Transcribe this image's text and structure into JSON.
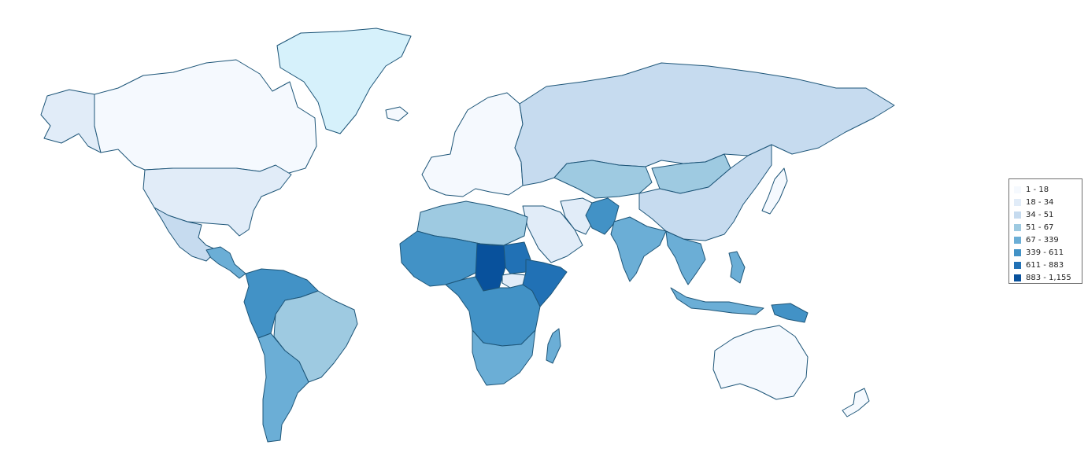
{
  "legend": {
    "bins": [
      {
        "label": "1 - 18",
        "color": "#f5f9fe"
      },
      {
        "label": "18 - 34",
        "color": "#e1ecf8"
      },
      {
        "label": "34 - 51",
        "color": "#c6dbef"
      },
      {
        "label": "51 - 67",
        "color": "#9ecae1"
      },
      {
        "label": "67 - 339",
        "color": "#6baed6"
      },
      {
        "label": "339 - 611",
        "color": "#4292c6"
      },
      {
        "label": "611 - 883",
        "color": "#2171b5"
      },
      {
        "label": "883 - 1,155",
        "color": "#08519c"
      }
    ]
  },
  "regions": [
    {
      "name": "alaska",
      "color": "#e1ecf8"
    },
    {
      "name": "canada",
      "color": "#f5f9fe"
    },
    {
      "name": "greenland",
      "color": "#d6f1fb"
    },
    {
      "name": "usa",
      "color": "#e1ecf8"
    },
    {
      "name": "mexico",
      "color": "#c6dbef"
    },
    {
      "name": "central-america",
      "color": "#6baed6"
    },
    {
      "name": "northern-south-america",
      "color": "#4292c6"
    },
    {
      "name": "brazil",
      "color": "#9ecae1"
    },
    {
      "name": "southern-south-america",
      "color": "#6baed6"
    },
    {
      "name": "iceland",
      "color": "#f5f9fe"
    },
    {
      "name": "europe",
      "color": "#f5f9fe"
    },
    {
      "name": "russia",
      "color": "#c6dbef"
    },
    {
      "name": "kazakhstan",
      "color": "#9ecae1"
    },
    {
      "name": "mongolia",
      "color": "#9ecae1"
    },
    {
      "name": "china",
      "color": "#c6dbef"
    },
    {
      "name": "japan",
      "color": "#f5f9fe"
    },
    {
      "name": "middle-east",
      "color": "#e1ecf8"
    },
    {
      "name": "iran",
      "color": "#e1ecf8"
    },
    {
      "name": "afghanistan-pakistan",
      "color": "#4292c6"
    },
    {
      "name": "india",
      "color": "#6baed6"
    },
    {
      "name": "southeast-asia",
      "color": "#6baed6"
    },
    {
      "name": "philippines",
      "color": "#6baed6"
    },
    {
      "name": "indonesia",
      "color": "#6baed6"
    },
    {
      "name": "papua-new-guinea",
      "color": "#4292c6"
    },
    {
      "name": "australia",
      "color": "#f5f9fe"
    },
    {
      "name": "new-zealand",
      "color": "#f5f9fe"
    },
    {
      "name": "north-africa",
      "color": "#9ecae1"
    },
    {
      "name": "west-africa",
      "color": "#4292c6"
    },
    {
      "name": "chad",
      "color": "#08519c"
    },
    {
      "name": "sudan",
      "color": "#2171b5"
    },
    {
      "name": "south-sudan",
      "color": "#e1ecf8"
    },
    {
      "name": "ethiopia-somalia",
      "color": "#2171b5"
    },
    {
      "name": "central-africa",
      "color": "#4292c6"
    },
    {
      "name": "southern-africa",
      "color": "#6baed6"
    },
    {
      "name": "madagascar",
      "color": "#6baed6"
    }
  ]
}
